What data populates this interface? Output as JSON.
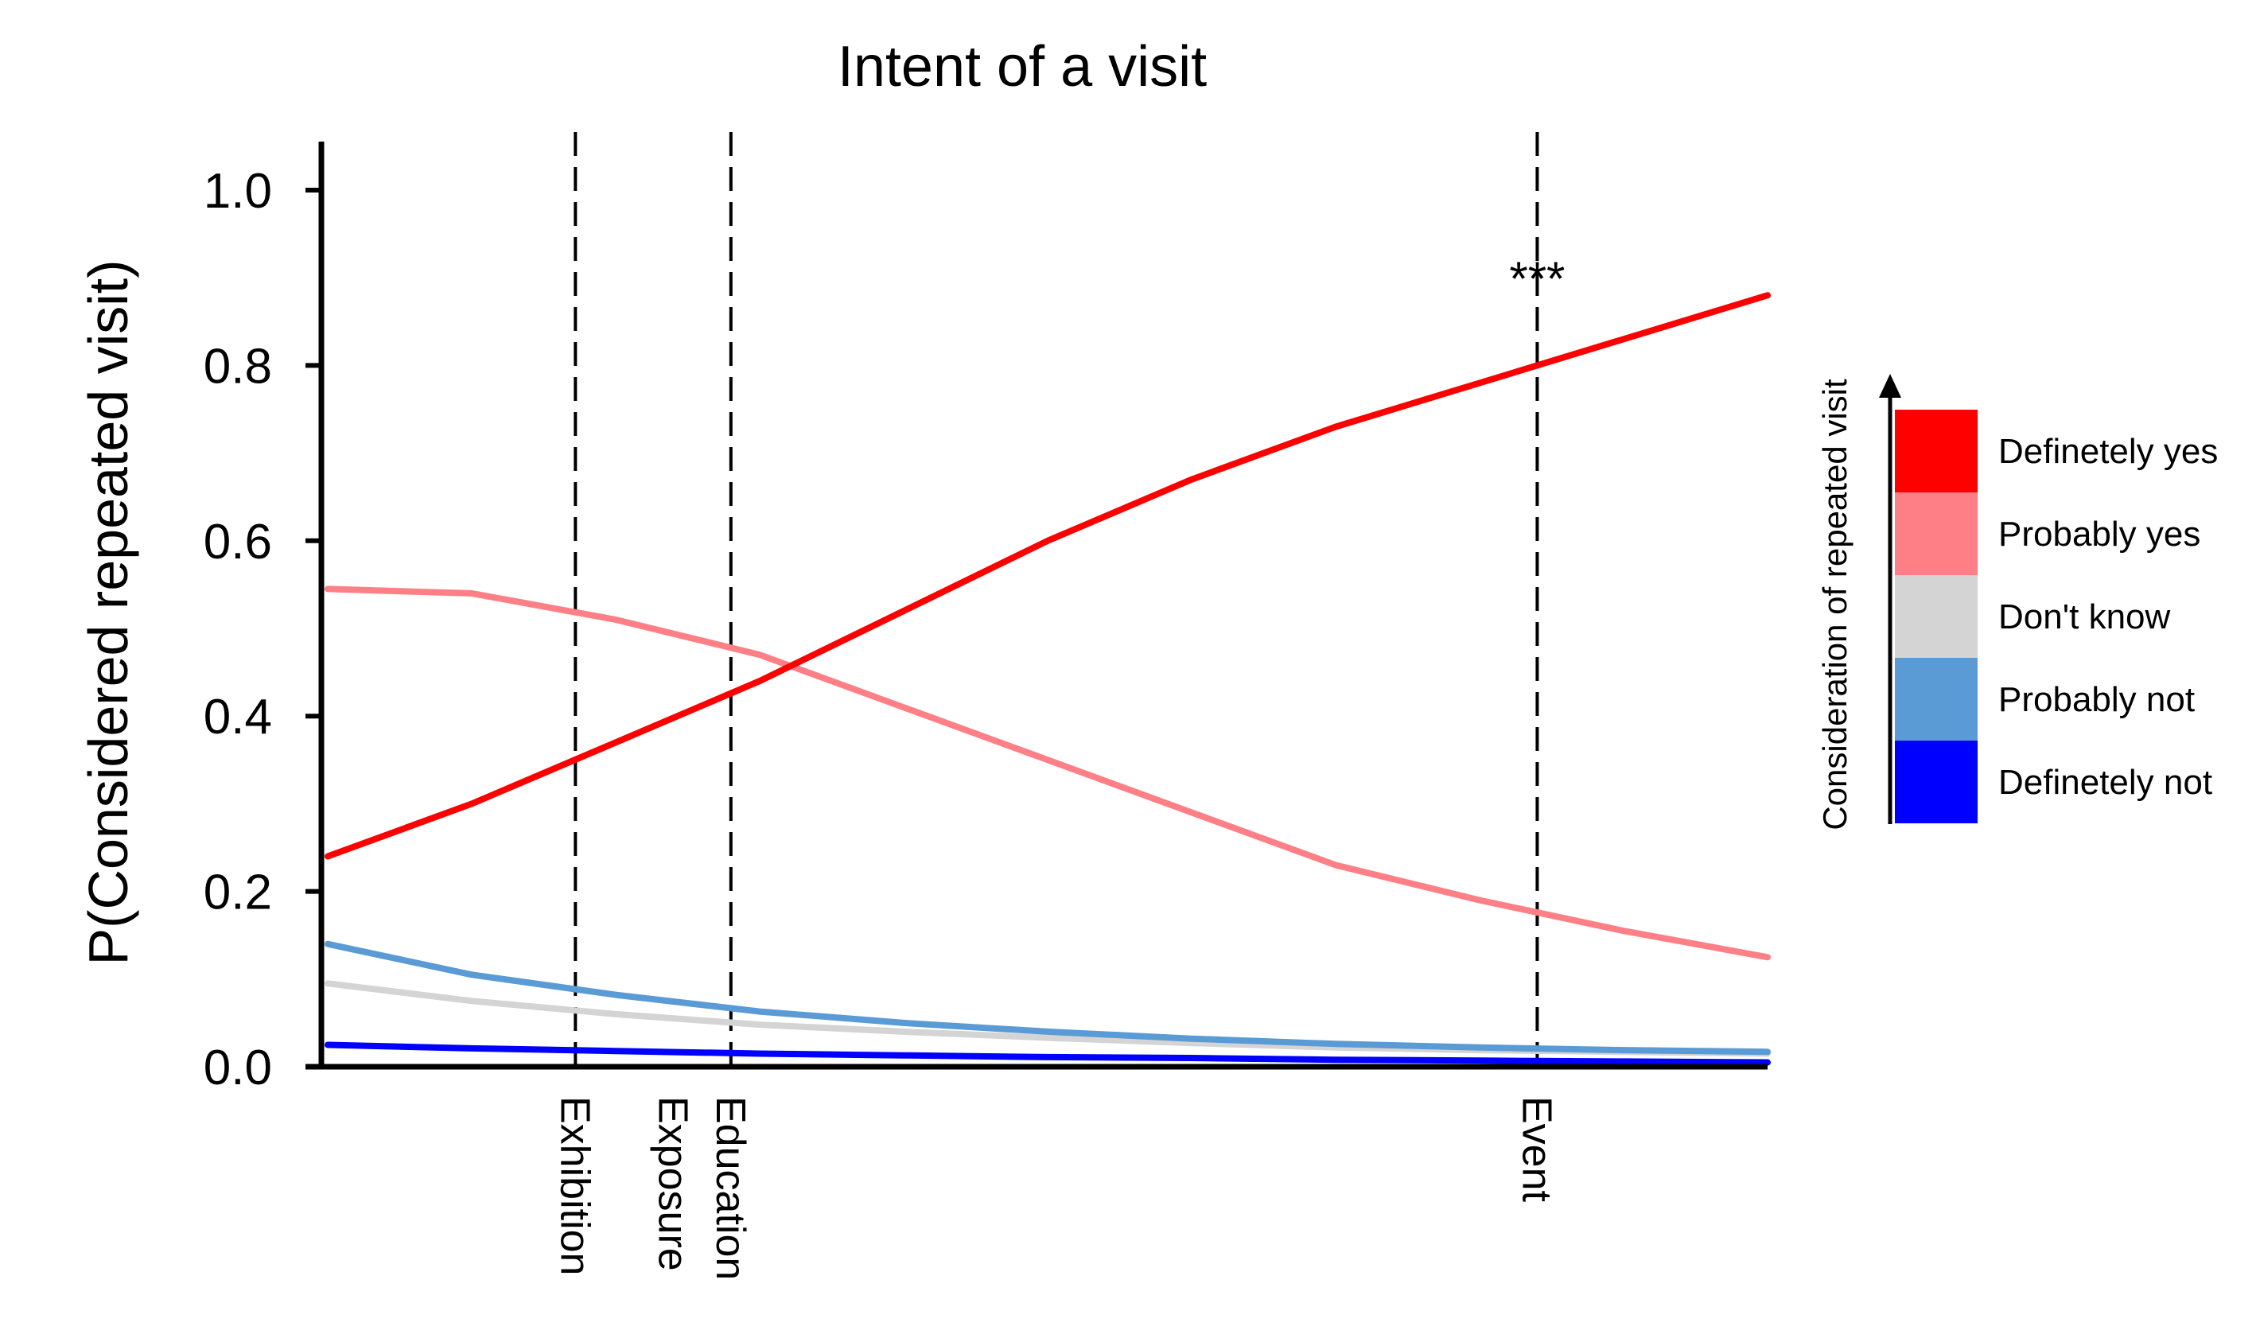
{
  "chart_data": {
    "type": "line",
    "title": "Intent of a visit",
    "ylabel": "P(Considered repeated visit)",
    "xlabel": "",
    "ylim": [
      0,
      1.0
    ],
    "yticks": [
      "0.0",
      "0.2",
      "0.4",
      "0.6",
      "0.8",
      "1.0"
    ],
    "grid": false,
    "x": [
      0,
      0.1,
      0.2,
      0.3,
      0.4,
      0.5,
      0.6,
      0.7,
      0.8,
      0.9,
      1.0
    ],
    "series": [
      {
        "name": "Definetely yes",
        "color": "#ff0000",
        "values": [
          0.24,
          0.3,
          0.37,
          0.44,
          0.52,
          0.6,
          0.67,
          0.73,
          0.78,
          0.83,
          0.88
        ]
      },
      {
        "name": "Probably yes",
        "color": "#ff7f86",
        "values": [
          0.545,
          0.54,
          0.51,
          0.47,
          0.41,
          0.35,
          0.29,
          0.23,
          0.19,
          0.155,
          0.125
        ]
      },
      {
        "name": "Don't know",
        "color": "#d4d4d4",
        "values": [
          0.095,
          0.075,
          0.06,
          0.048,
          0.04,
          0.033,
          0.027,
          0.022,
          0.019,
          0.017,
          0.015
        ]
      },
      {
        "name": "Probably not",
        "color": "#5b9bd5",
        "values": [
          0.14,
          0.105,
          0.082,
          0.063,
          0.05,
          0.04,
          0.032,
          0.026,
          0.022,
          0.019,
          0.017
        ]
      },
      {
        "name": "Definetely not",
        "color": "#0000ff",
        "values": [
          0.025,
          0.021,
          0.018,
          0.015,
          0.013,
          0.011,
          0.01,
          0.008,
          0.007,
          0.006,
          0.005
        ]
      }
    ],
    "markers": [
      {
        "label": "Exhibition",
        "x": 0.172,
        "line": true
      },
      {
        "label": "Exposure",
        "x": 0.24,
        "line": false
      },
      {
        "label": "Education",
        "x": 0.28,
        "line": true
      },
      {
        "label": "Event",
        "x": 0.84,
        "line": true
      }
    ],
    "annotations": [
      {
        "text": "***",
        "x": 0.84,
        "y": 0.9
      }
    ],
    "legend": {
      "title": "Consideration of repeated visit",
      "placement": "right",
      "entries": [
        "Definetely yes",
        "Probably yes",
        "Don't know",
        "Probably not",
        "Definetely not"
      ]
    }
  }
}
